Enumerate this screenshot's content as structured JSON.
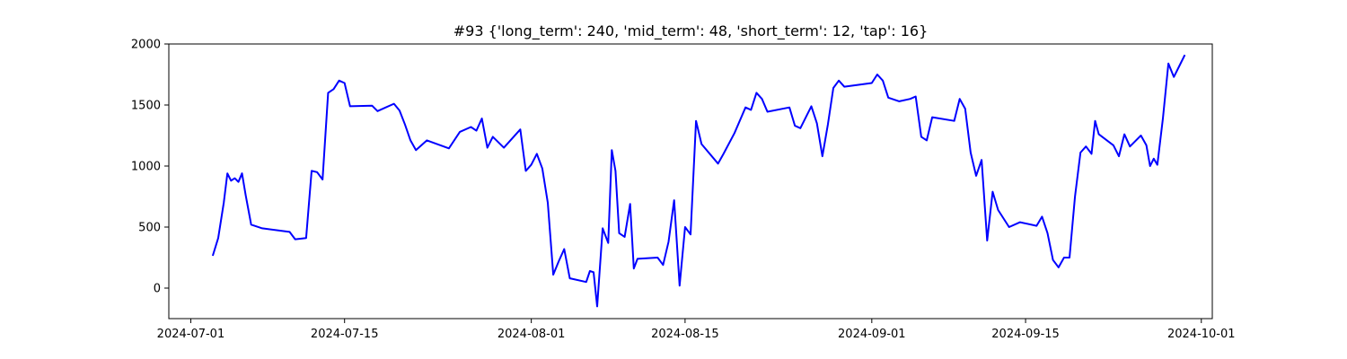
{
  "chart_data": {
    "type": "line",
    "title": "#93 {'long_term': 240, 'mid_term': 48, 'short_term': 12, 'tap': 16}",
    "xlabel": "",
    "ylabel": "",
    "x_axis": "date",
    "xlim": [
      "2024-06-29",
      "2024-10-02"
    ],
    "ylim": [
      -250,
      2000
    ],
    "x_ticks": [
      "2024-07-01",
      "2024-07-15",
      "2024-08-01",
      "2024-08-15",
      "2024-09-01",
      "2024-09-15",
      "2024-10-01"
    ],
    "y_ticks": [
      0,
      500,
      1000,
      1500,
      2000
    ],
    "grid": false,
    "legend": "none",
    "line_color": "#0000ff",
    "series": [
      {
        "points": [
          [
            "2024-07-03",
            265
          ],
          [
            "2024-07-03",
            410
          ],
          [
            "2024-07-04",
            700
          ],
          [
            "2024-07-04",
            940
          ],
          [
            "2024-07-04",
            880
          ],
          [
            "2024-07-05",
            900
          ],
          [
            "2024-07-05",
            870
          ],
          [
            "2024-07-05",
            940
          ],
          [
            "2024-07-06",
            760
          ],
          [
            "2024-07-06",
            520
          ],
          [
            "2024-07-07",
            490
          ],
          [
            "2024-07-10",
            460
          ],
          [
            "2024-07-10",
            400
          ],
          [
            "2024-07-11",
            410
          ],
          [
            "2024-07-12",
            960
          ],
          [
            "2024-07-12",
            950
          ],
          [
            "2024-07-13",
            890
          ],
          [
            "2024-07-13",
            1600
          ],
          [
            "2024-07-14",
            1630
          ],
          [
            "2024-07-14",
            1700
          ],
          [
            "2024-07-15",
            1680
          ],
          [
            "2024-07-15",
            1490
          ],
          [
            "2024-07-17",
            1495
          ],
          [
            "2024-07-18",
            1450
          ],
          [
            "2024-07-18",
            1470
          ],
          [
            "2024-07-19",
            1510
          ],
          [
            "2024-07-20",
            1455
          ],
          [
            "2024-07-20",
            1340
          ],
          [
            "2024-07-21",
            1210
          ],
          [
            "2024-07-21",
            1130
          ],
          [
            "2024-07-22",
            1210
          ],
          [
            "2024-07-24",
            1145
          ],
          [
            "2024-07-25",
            1280
          ],
          [
            "2024-07-26",
            1320
          ],
          [
            "2024-07-27",
            1290
          ],
          [
            "2024-07-27",
            1390
          ],
          [
            "2024-07-28",
            1150
          ],
          [
            "2024-07-28",
            1240
          ],
          [
            "2024-07-29",
            1150
          ],
          [
            "2024-07-31",
            1300
          ],
          [
            "2024-07-31",
            960
          ],
          [
            "2024-08-01",
            1010
          ],
          [
            "2024-08-01",
            1100
          ],
          [
            "2024-08-02",
            980
          ],
          [
            "2024-08-02",
            700
          ],
          [
            "2024-08-03",
            110
          ],
          [
            "2024-08-03",
            220
          ],
          [
            "2024-08-04",
            320
          ],
          [
            "2024-08-04",
            80
          ],
          [
            "2024-08-06",
            50
          ],
          [
            "2024-08-06",
            140
          ],
          [
            "2024-08-06",
            130
          ],
          [
            "2024-08-07",
            -150
          ],
          [
            "2024-08-07",
            490
          ],
          [
            "2024-08-08",
            370
          ],
          [
            "2024-08-08",
            1130
          ],
          [
            "2024-08-08",
            960
          ],
          [
            "2024-08-09",
            450
          ],
          [
            "2024-08-09",
            420
          ],
          [
            "2024-08-10",
            690
          ],
          [
            "2024-08-10",
            160
          ],
          [
            "2024-08-10",
            240
          ],
          [
            "2024-08-12",
            250
          ],
          [
            "2024-08-13",
            190
          ],
          [
            "2024-08-13",
            380
          ],
          [
            "2024-08-14",
            720
          ],
          [
            "2024-08-14",
            20
          ],
          [
            "2024-08-15",
            500
          ],
          [
            "2024-08-15",
            440
          ],
          [
            "2024-08-16",
            1370
          ],
          [
            "2024-08-16",
            1180
          ],
          [
            "2024-08-18",
            1020
          ],
          [
            "2024-08-18",
            1100
          ],
          [
            "2024-08-19",
            1270
          ],
          [
            "2024-08-20",
            1480
          ],
          [
            "2024-08-21",
            1460
          ],
          [
            "2024-08-21",
            1600
          ],
          [
            "2024-08-22",
            1550
          ],
          [
            "2024-08-22",
            1445
          ],
          [
            "2024-08-24",
            1480
          ],
          [
            "2024-08-25",
            1330
          ],
          [
            "2024-08-25",
            1310
          ],
          [
            "2024-08-26",
            1490
          ],
          [
            "2024-08-27",
            1350
          ],
          [
            "2024-08-27",
            1080
          ],
          [
            "2024-08-28",
            1340
          ],
          [
            "2024-08-28",
            1640
          ],
          [
            "2024-08-29",
            1700
          ],
          [
            "2024-08-29",
            1650
          ],
          [
            "2024-09-01",
            1680
          ],
          [
            "2024-09-01",
            1750
          ],
          [
            "2024-09-02",
            1700
          ],
          [
            "2024-09-02",
            1560
          ],
          [
            "2024-09-03",
            1530
          ],
          [
            "2024-09-04",
            1550
          ],
          [
            "2024-09-05",
            1570
          ],
          [
            "2024-09-05",
            1240
          ],
          [
            "2024-09-06",
            1210
          ],
          [
            "2024-09-06",
            1400
          ],
          [
            "2024-09-08",
            1370
          ],
          [
            "2024-09-09",
            1550
          ],
          [
            "2024-09-09",
            1470
          ],
          [
            "2024-09-10",
            1110
          ],
          [
            "2024-09-10",
            920
          ],
          [
            "2024-09-11",
            1050
          ],
          [
            "2024-09-11",
            390
          ],
          [
            "2024-09-12",
            790
          ],
          [
            "2024-09-12",
            640
          ],
          [
            "2024-09-13",
            500
          ],
          [
            "2024-09-14",
            540
          ],
          [
            "2024-09-16",
            510
          ],
          [
            "2024-09-16",
            585
          ],
          [
            "2024-09-17",
            450
          ],
          [
            "2024-09-17",
            230
          ],
          [
            "2024-09-18",
            170
          ],
          [
            "2024-09-18",
            250
          ],
          [
            "2024-09-19",
            250
          ],
          [
            "2024-09-19",
            750
          ],
          [
            "2024-09-20",
            1110
          ],
          [
            "2024-09-20",
            1160
          ],
          [
            "2024-09-21",
            1100
          ],
          [
            "2024-09-21",
            1370
          ],
          [
            "2024-09-21",
            1260
          ],
          [
            "2024-09-23",
            1170
          ],
          [
            "2024-09-23",
            1080
          ],
          [
            "2024-09-24",
            1260
          ],
          [
            "2024-09-24",
            1160
          ],
          [
            "2024-09-25",
            1250
          ],
          [
            "2024-09-26",
            1170
          ],
          [
            "2024-09-26",
            1000
          ],
          [
            "2024-09-26",
            1060
          ],
          [
            "2024-09-27",
            1010
          ],
          [
            "2024-09-27",
            1390
          ],
          [
            "2024-09-28",
            1840
          ],
          [
            "2024-09-28",
            1730
          ],
          [
            "2024-09-29",
            1820
          ],
          [
            "2024-09-29",
            1910
          ]
        ]
      }
    ]
  }
}
